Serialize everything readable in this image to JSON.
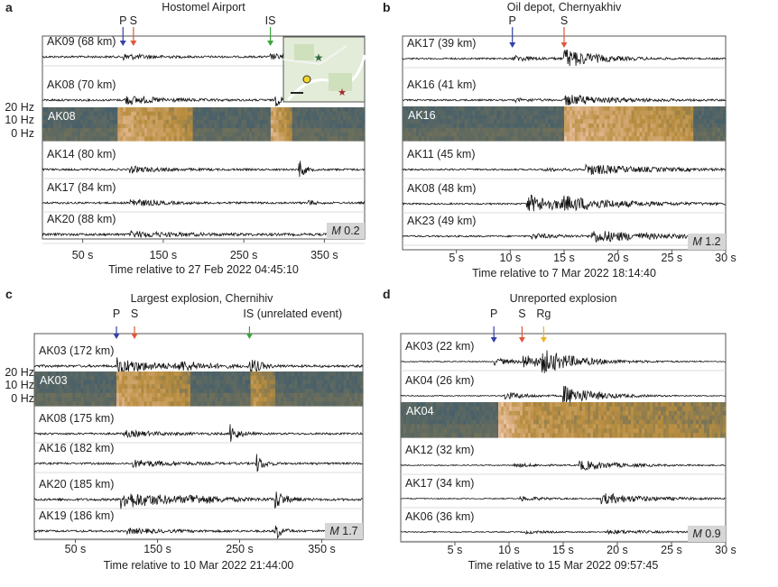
{
  "colors": {
    "p_arrow": "#3340a8",
    "s_arrow": "#e0573a",
    "is_arrow": "#3aa53a",
    "rg_arrow": "#f0b228",
    "trace": "#111111",
    "spec_low": "#1e4f7a",
    "spec_mid": "#b88d3e",
    "spec_high": "#f2c8b0"
  },
  "chart_data": [
    {
      "panel": "a",
      "type": "line",
      "title": "Hostomel Airport",
      "xlabel": "Time relative to 27 Feb 2022 04:45:10",
      "xlim": [
        0,
        400
      ],
      "xticks": [
        50,
        150,
        250,
        350
      ],
      "xtick_labels": [
        "50 s",
        "150 s",
        "250 s",
        "350 s"
      ],
      "freq_labels": [
        "20 Hz",
        "10 Hz",
        "0 Hz"
      ],
      "magnitude": {
        "prefix": "M",
        "value": "0.2"
      },
      "phase_markers": [
        {
          "label": "P",
          "t": 100
        },
        {
          "label": "S",
          "t": 113
        },
        {
          "label": "IS",
          "t": 283
        }
      ],
      "map_inset": true,
      "rows": [
        {
          "kind": "trace",
          "label": "AK09 (68 km)",
          "bursts": [
            {
              "t": 100,
              "amp": 0.3,
              "dur": 40
            },
            {
              "t": 283,
              "amp": 0.28,
              "dur": 30
            }
          ],
          "noise": 0.1
        },
        {
          "kind": "trace",
          "label": "AK08 (70 km)",
          "bursts": [
            {
              "t": 102,
              "amp": 0.45,
              "dur": 60
            },
            {
              "t": 288,
              "amp": 0.7,
              "dur": 12
            }
          ],
          "noise": 0.1
        },
        {
          "kind": "spec",
          "label": "AK08",
          "events": [
            {
              "t": 95,
              "w": 90,
              "i": 0.7
            },
            {
              "t": 285,
              "w": 25,
              "i": 0.7
            }
          ]
        },
        {
          "kind": "trace",
          "label": "AK14 (80 km)",
          "bursts": [
            {
              "t": 108,
              "amp": 0.3,
              "dur": 50
            },
            {
              "t": 318,
              "amp": 1.3,
              "dur": 8
            }
          ],
          "noise": 0.1
        },
        {
          "kind": "trace",
          "label": "AK17 (84 km)",
          "bursts": [
            {
              "t": 108,
              "amp": 0.45,
              "dur": 40
            },
            {
              "t": 330,
              "amp": 0.35,
              "dur": 8
            }
          ],
          "noise": 0.1
        },
        {
          "kind": "trace",
          "label": "AK20 (88 km)",
          "bursts": [
            {
              "t": 110,
              "amp": 0.28,
              "dur": 80
            }
          ],
          "noise": 0.12
        }
      ]
    },
    {
      "panel": "b",
      "type": "line",
      "title": "Oil depot, Chernyakhiv",
      "xlabel": "Time relative to 7 Mar 2022 18:14:40",
      "xlim": [
        0,
        30
      ],
      "xticks": [
        5,
        10,
        15,
        20,
        25,
        30
      ],
      "xtick_labels": [
        "5 s",
        "10 s",
        "15 s",
        "20 s",
        "25 s",
        "30 s"
      ],
      "freq_labels": [],
      "magnitude": {
        "prefix": "M",
        "value": "1.2"
      },
      "phase_markers": [
        {
          "label": "P",
          "t": 10.2
        },
        {
          "label": "S",
          "t": 15
        }
      ],
      "map_inset": false,
      "rows": [
        {
          "kind": "trace",
          "label": "AK17 (39 km)",
          "bursts": [
            {
              "t": 10.2,
              "amp": 0.3,
              "dur": 3
            },
            {
              "t": 15,
              "amp": 1.0,
              "dur": 4
            }
          ],
          "noise": 0.08
        },
        {
          "kind": "trace",
          "label": "AK16 (41 km)",
          "bursts": [
            {
              "t": 10.5,
              "amp": 0.15,
              "dur": 3
            },
            {
              "t": 15,
              "amp": 0.55,
              "dur": 6
            }
          ],
          "noise": 0.08
        },
        {
          "kind": "spec",
          "label": "AK16",
          "events": [
            {
              "t": 15,
              "w": 12,
              "i": 0.75
            }
          ]
        },
        {
          "kind": "trace",
          "label": "AK11 (45 km)",
          "bursts": [
            {
              "t": 13,
              "amp": 0.15,
              "dur": 3
            },
            {
              "t": 17,
              "amp": 0.5,
              "dur": 8
            }
          ],
          "noise": 0.08
        },
        {
          "kind": "trace",
          "label": "AK08 (48 km)",
          "bursts": [
            {
              "t": 11.5,
              "amp": 0.9,
              "dur": 6
            },
            {
              "t": 15,
              "amp": 0.4,
              "dur": 8
            }
          ],
          "noise": 0.08
        },
        {
          "kind": "trace",
          "label": "AK23 (49 km)",
          "bursts": [
            {
              "t": 12,
              "amp": 0.25,
              "dur": 4
            },
            {
              "t": 17.5,
              "amp": 0.6,
              "dur": 8
            }
          ],
          "noise": 0.08
        }
      ]
    },
    {
      "panel": "c",
      "type": "line",
      "title": "Largest explosion, Chernihiv",
      "xlabel": "Time relative to 10 Mar 2022 21:44:00",
      "xlim": [
        0,
        400
      ],
      "xticks": [
        50,
        150,
        250,
        350
      ],
      "xtick_labels": [
        "50 s",
        "150 s",
        "250 s",
        "350 s"
      ],
      "freq_labels": [
        "20 Hz",
        "10 Hz",
        "0 Hz"
      ],
      "magnitude": {
        "prefix": "M",
        "value": "1.7"
      },
      "phase_markers": [
        {
          "label": "P",
          "t": 100
        },
        {
          "label": "S",
          "t": 122
        },
        {
          "label": "IS (unrelated event)",
          "t": 262
        }
      ],
      "map_inset": false,
      "rows": [
        {
          "kind": "trace",
          "label": "AK03 (172 km)",
          "bursts": [
            {
              "t": 100,
              "amp": 0.8,
              "dur": 60
            },
            {
              "t": 175,
              "amp": 0.45,
              "dur": 40
            },
            {
              "t": 262,
              "amp": 1.0,
              "dur": 15
            }
          ],
          "noise": 0.12
        },
        {
          "kind": "spec",
          "label": "AK03",
          "events": [
            {
              "t": 100,
              "w": 90,
              "i": 0.65
            },
            {
              "t": 262,
              "w": 30,
              "i": 0.55
            }
          ]
        },
        {
          "kind": "trace",
          "label": "AK08 (175 km)",
          "bursts": [
            {
              "t": 108,
              "amp": 0.3,
              "dur": 60
            },
            {
              "t": 238,
              "amp": 1.1,
              "dur": 12
            }
          ],
          "noise": 0.1
        },
        {
          "kind": "trace",
          "label": "AK16 (182 km)",
          "bursts": [
            {
              "t": 120,
              "amp": 0.35,
              "dur": 60
            },
            {
              "t": 270,
              "amp": 1.0,
              "dur": 12
            }
          ],
          "noise": 0.1
        },
        {
          "kind": "trace",
          "label": "AK20 (185 km)",
          "bursts": [
            {
              "t": 105,
              "amp": 0.9,
              "dur": 80
            },
            {
              "t": 188,
              "amp": 0.35,
              "dur": 40
            },
            {
              "t": 293,
              "amp": 1.0,
              "dur": 15
            }
          ],
          "noise": 0.12
        },
        {
          "kind": "trace",
          "label": "AK19 (186 km)",
          "bursts": [
            {
              "t": 112,
              "amp": 0.25,
              "dur": 60
            },
            {
              "t": 293,
              "amp": 1.1,
              "dur": 10
            }
          ],
          "noise": 0.1
        }
      ]
    },
    {
      "panel": "d",
      "type": "line",
      "title": "Unreported explosion",
      "xlabel": "Time relative to 15 Mar 2022 09:57:45",
      "xlim": [
        0,
        30
      ],
      "xticks": [
        5,
        10,
        15,
        20,
        25,
        30
      ],
      "xtick_labels": [
        "5 s",
        "10 s",
        "15 s",
        "20 s",
        "25 s",
        "30 s"
      ],
      "freq_labels": [],
      "magnitude": {
        "prefix": "M",
        "value": "0.9"
      },
      "phase_markers": [
        {
          "label": "P",
          "t": 8.6
        },
        {
          "label": "S",
          "t": 11.2
        },
        {
          "label": "Rg",
          "t": 13.2
        }
      ],
      "map_inset": false,
      "rows": [
        {
          "kind": "trace",
          "label": "AK03 (22 km)",
          "bursts": [
            {
              "t": 8.6,
              "amp": 0.35,
              "dur": 3
            },
            {
              "t": 11.2,
              "amp": 0.7,
              "dur": 3
            },
            {
              "t": 13,
              "amp": 0.95,
              "dur": 5
            }
          ],
          "noise": 0.05
        },
        {
          "kind": "trace",
          "label": "AK04 (26 km)",
          "bursts": [
            {
              "t": 9.5,
              "amp": 0.4,
              "dur": 3
            },
            {
              "t": 15,
              "amp": 1.05,
              "dur": 4
            }
          ],
          "noise": 0.05
        },
        {
          "kind": "spec",
          "label": "AK04",
          "events": [
            {
              "t": 9,
              "w": 3,
              "i": 0.85
            },
            {
              "t": 12,
              "w": 18,
              "i": 0.55
            }
          ]
        },
        {
          "kind": "trace",
          "label": "AK12 (32 km)",
          "bursts": [
            {
              "t": 10.5,
              "amp": 0.2,
              "dur": 3
            },
            {
              "t": 16.5,
              "amp": 0.5,
              "dur": 5
            }
          ],
          "noise": 0.05
        },
        {
          "kind": "trace",
          "label": "AK17 (34 km)",
          "bursts": [
            {
              "t": 11,
              "amp": 0.25,
              "dur": 3
            },
            {
              "t": 18.5,
              "amp": 0.55,
              "dur": 6
            }
          ],
          "noise": 0.05
        },
        {
          "kind": "trace",
          "label": "AK06 (36 km)",
          "bursts": [
            {
              "t": 11.5,
              "amp": 0.15,
              "dur": 3
            },
            {
              "t": 19,
              "amp": 0.2,
              "dur": 6
            }
          ],
          "noise": 0.05
        }
      ]
    }
  ]
}
